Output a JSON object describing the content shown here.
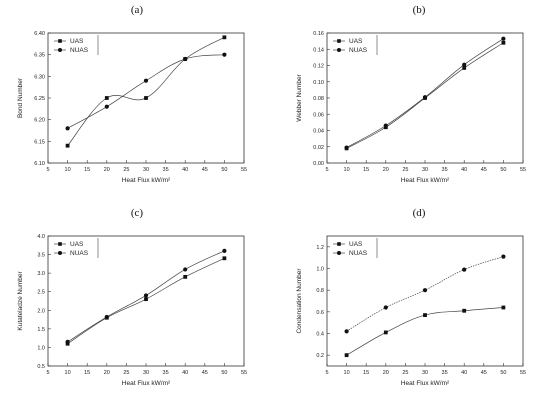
{
  "panels": [
    {
      "label": "(a)"
    },
    {
      "label": "(b)"
    },
    {
      "label": "(c)"
    },
    {
      "label": "(d)"
    }
  ],
  "chart_data": [
    {
      "type": "line",
      "xlabel": "Heat Flux kW/m²",
      "ylabel": "Bond Number",
      "xlim": [
        5,
        55
      ],
      "ylim": [
        6.1,
        6.4
      ],
      "xticks": [
        "5",
        "10",
        "15",
        "20",
        "25",
        "30",
        "35",
        "40",
        "45",
        "50",
        "55"
      ],
      "yticks": [
        "6.10",
        "6.15",
        "6.20",
        "6.25",
        "6.30",
        "6.35",
        "6.40"
      ],
      "legend_position": "top-left",
      "series": [
        {
          "name": "UAS",
          "marker": "square",
          "x": [
            10,
            20,
            30,
            40,
            50
          ],
          "y": [
            6.14,
            6.25,
            6.25,
            6.34,
            6.39
          ]
        },
        {
          "name": "NUAS",
          "marker": "circle",
          "x": [
            10,
            20,
            30,
            40,
            50
          ],
          "y": [
            6.18,
            6.23,
            6.29,
            6.34,
            6.35
          ]
        }
      ]
    },
    {
      "type": "line",
      "xlabel": "Heat Flux kW/m²",
      "ylabel": "Webber Number",
      "xlim": [
        5,
        55
      ],
      "ylim": [
        0.0,
        0.16
      ],
      "xticks": [
        "5",
        "10",
        "15",
        "20",
        "25",
        "30",
        "35",
        "40",
        "45",
        "50",
        "55"
      ],
      "yticks": [
        "0.00",
        "0.02",
        "0.04",
        "0.06",
        "0.08",
        "0.10",
        "0.12",
        "0.14",
        "0.16"
      ],
      "legend_position": "top-left",
      "series": [
        {
          "name": "UAS",
          "marker": "square",
          "x": [
            10,
            20,
            30,
            40,
            50
          ],
          "y": [
            0.018,
            0.044,
            0.08,
            0.117,
            0.148
          ]
        },
        {
          "name": "NUAS",
          "marker": "circle",
          "x": [
            10,
            20,
            30,
            40,
            50
          ],
          "y": [
            0.019,
            0.046,
            0.081,
            0.121,
            0.153
          ]
        }
      ]
    },
    {
      "type": "line",
      "xlabel": "Heat Flux kW/m²",
      "ylabel": "Kutateladze Number",
      "xlim": [
        5,
        55
      ],
      "ylim": [
        0.5,
        4.0
      ],
      "xticks": [
        "5",
        "10",
        "15",
        "20",
        "25",
        "30",
        "35",
        "40",
        "45",
        "50",
        "55"
      ],
      "yticks": [
        "0.5",
        "1.0",
        "1.5",
        "2.0",
        "2.5",
        "3.0",
        "3.5",
        "4.0"
      ],
      "legend_position": "top-left",
      "series": [
        {
          "name": "UAS",
          "marker": "square",
          "x": [
            10,
            20,
            30,
            40,
            50
          ],
          "y": [
            1.1,
            1.8,
            2.3,
            2.9,
            3.4
          ]
        },
        {
          "name": "NUAS",
          "marker": "circle",
          "x": [
            10,
            20,
            30,
            40,
            50
          ],
          "y": [
            1.15,
            1.82,
            2.4,
            3.1,
            3.6
          ]
        }
      ]
    },
    {
      "type": "line",
      "xlabel": "Heat Flux kW/m²",
      "ylabel": "Condensation Number",
      "xlim": [
        5,
        55
      ],
      "ylim": [
        0.1,
        1.3
      ],
      "xticks": [
        "5",
        "10",
        "15",
        "20",
        "25",
        "30",
        "35",
        "40",
        "45",
        "50",
        "55"
      ],
      "yticks": [
        "0.2",
        "0.4",
        "0.6",
        "0.8",
        "1.0",
        "1.2"
      ],
      "legend_position": "top-left",
      "series": [
        {
          "name": "UAS",
          "marker": "square",
          "x": [
            10,
            20,
            30,
            40,
            50
          ],
          "y": [
            0.2,
            0.41,
            0.57,
            0.61,
            0.64
          ]
        },
        {
          "name": "NUAS",
          "marker": "circle",
          "x": [
            10,
            20,
            30,
            40,
            50
          ],
          "y": [
            0.42,
            0.64,
            0.8,
            0.99,
            1.11
          ]
        }
      ]
    }
  ]
}
